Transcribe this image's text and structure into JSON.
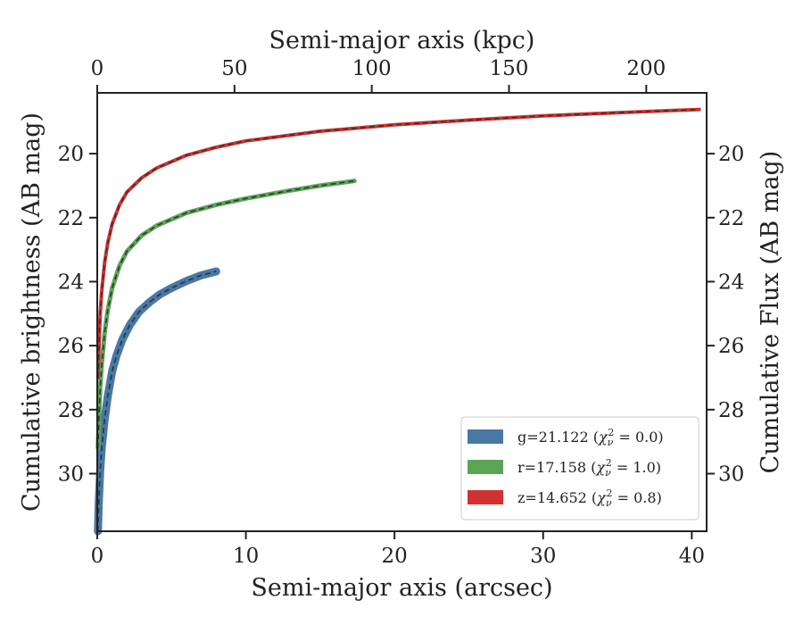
{
  "chart_data": {
    "type": "line",
    "title": "",
    "xlabel": "Semi-major axis (arcsec)",
    "ylabel": "Cumulative brightness (AB mag)",
    "x2label": "Semi-major axis (kpc)",
    "y2label": "Cumulative Flux (AB mag)",
    "xlim": [
      0,
      41
    ],
    "ylim": [
      31.8,
      18.1
    ],
    "y_inverted": true,
    "x2lim": [
      0,
      222
    ],
    "xticks": [
      "0",
      "10",
      "20",
      "30",
      "40"
    ],
    "yticks": [
      "20",
      "22",
      "24",
      "26",
      "28",
      "30"
    ],
    "x2ticks": [
      "0",
      "50",
      "100",
      "150",
      "200"
    ],
    "grid": false,
    "legend_position": "lower-right",
    "series": [
      {
        "key": "g",
        "color": "#4878a6",
        "legend": {
          "prefix": "g=21.122 (",
          "chi": "χ",
          "sub": "ν",
          "sup": "2",
          "suffix": " = 0.0)"
        },
        "points": [
          [
            0.05,
            31.8
          ],
          [
            0.1,
            30.9
          ],
          [
            0.2,
            29.9
          ],
          [
            0.3,
            29.2
          ],
          [
            0.5,
            28.3
          ],
          [
            0.7,
            27.6
          ],
          [
            1.0,
            26.8
          ],
          [
            1.3,
            26.3
          ],
          [
            1.7,
            25.8
          ],
          [
            2.2,
            25.35
          ],
          [
            2.8,
            24.95
          ],
          [
            3.5,
            24.65
          ],
          [
            4.2,
            24.4
          ],
          [
            5.0,
            24.2
          ],
          [
            6.0,
            23.98
          ],
          [
            7.0,
            23.8
          ],
          [
            8.0,
            23.68
          ]
        ]
      },
      {
        "key": "r",
        "color": "#5aa556",
        "legend": {
          "prefix": "r=17.158 (",
          "chi": "χ",
          "sub": "ν",
          "sup": "2",
          "suffix": " = 1.0)"
        },
        "points": [
          [
            0.05,
            29.2
          ],
          [
            0.1,
            28.4
          ],
          [
            0.2,
            27.3
          ],
          [
            0.3,
            26.6
          ],
          [
            0.5,
            25.6
          ],
          [
            0.7,
            24.9
          ],
          [
            1.0,
            24.2
          ],
          [
            1.5,
            23.5
          ],
          [
            2.0,
            23.05
          ],
          [
            3.0,
            22.55
          ],
          [
            4.0,
            22.25
          ],
          [
            6.0,
            21.85
          ],
          [
            8.0,
            21.6
          ],
          [
            10.0,
            21.4
          ],
          [
            13.0,
            21.15
          ],
          [
            15.0,
            21.0
          ],
          [
            17.3,
            20.85
          ]
        ]
      },
      {
        "key": "z",
        "color": "#d03232",
        "legend": {
          "prefix": "z=14.652 (",
          "chi": "χ",
          "sub": "ν",
          "sup": "2",
          "suffix": " = 0.8)"
        },
        "points": [
          [
            0.05,
            27.0
          ],
          [
            0.1,
            26.2
          ],
          [
            0.2,
            25.0
          ],
          [
            0.3,
            24.3
          ],
          [
            0.5,
            23.4
          ],
          [
            0.7,
            22.8
          ],
          [
            1.0,
            22.2
          ],
          [
            1.5,
            21.6
          ],
          [
            2.0,
            21.2
          ],
          [
            3.0,
            20.75
          ],
          [
            4.0,
            20.45
          ],
          [
            6.0,
            20.05
          ],
          [
            8.0,
            19.8
          ],
          [
            10.0,
            19.6
          ],
          [
            15.0,
            19.3
          ],
          [
            20.0,
            19.1
          ],
          [
            25.0,
            18.95
          ],
          [
            30.0,
            18.82
          ],
          [
            35.0,
            18.72
          ],
          [
            40.5,
            18.62
          ]
        ]
      }
    ]
  }
}
